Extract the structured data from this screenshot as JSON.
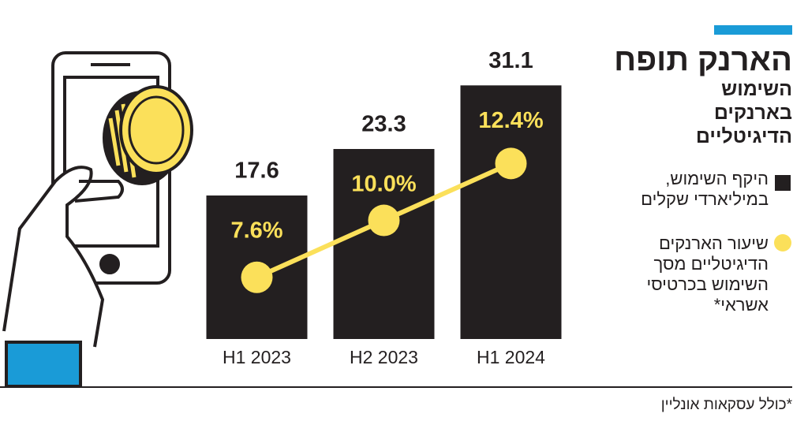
{
  "chart_data": {
    "type": "bar",
    "title": "הארנק תופח",
    "subtitle": "השימוש בארנקים הדיגיטליים",
    "footnote": "*כולל עסקאות אונליין",
    "categories": [
      "H1 2023",
      "H2 2023",
      "H1 2024"
    ],
    "series": [
      {
        "name": "היקף השימוש, במיליארדי שקלים",
        "color": "#231f20",
        "values": [
          17.6,
          23.3,
          31.1
        ]
      },
      {
        "name": "שיעור הארנקים הדיגיטליים מסך השימוש בכרטיסי אשראי*",
        "color": "#fbe05a",
        "type": "line",
        "axis": "y2",
        "values": [
          7.6,
          10.0,
          12.4
        ],
        "value_labels": [
          "7.6%",
          "10.0%",
          "12.4%"
        ]
      }
    ],
    "ylim": [
      0,
      32
    ],
    "y2lim": [
      5,
      16
    ]
  }
}
